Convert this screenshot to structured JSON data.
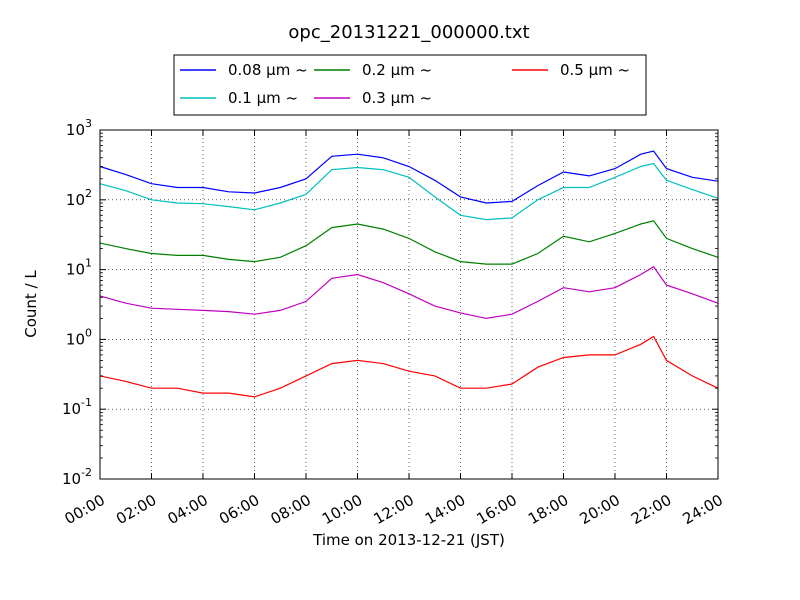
{
  "chart_data": {
    "type": "line",
    "title": "opc_20131221_000000.txt",
    "xlabel": "Time on 2013-12-21 (JST)",
    "ylabel": "Count / L",
    "xlim": [
      "00:00",
      "24:00"
    ],
    "ylim": [
      0.01,
      1000
    ],
    "yscale": "log",
    "grid": true,
    "legend_position": "top",
    "x_tick_labels": [
      "00:00",
      "02:00",
      "04:00",
      "06:00",
      "08:00",
      "10:00",
      "12:00",
      "14:00",
      "16:00",
      "18:00",
      "20:00",
      "22:00",
      "24:00"
    ],
    "y_tick_labels": [
      {
        "base": "10",
        "exp": "-2"
      },
      {
        "base": "10",
        "exp": "-1"
      },
      {
        "base": "10",
        "exp": "0"
      },
      {
        "base": "10",
        "exp": "1"
      },
      {
        "base": "10",
        "exp": "2"
      },
      {
        "base": "10",
        "exp": "3"
      }
    ],
    "x": [
      "00:00",
      "01:00",
      "02:00",
      "03:00",
      "04:00",
      "05:00",
      "06:00",
      "07:00",
      "08:00",
      "09:00",
      "10:00",
      "11:00",
      "12:00",
      "13:00",
      "14:00",
      "15:00",
      "16:00",
      "17:00",
      "18:00",
      "19:00",
      "20:00",
      "21:00",
      "21:30",
      "22:00",
      "23:00",
      "24:00"
    ],
    "series": [
      {
        "name": "0.08 μm ~",
        "color": "#0000ff",
        "values": [
          300,
          230,
          170,
          150,
          150,
          130,
          125,
          150,
          200,
          420,
          450,
          400,
          300,
          190,
          110,
          90,
          95,
          160,
          250,
          220,
          280,
          450,
          500,
          280,
          210,
          185
        ]
      },
      {
        "name": "0.1 μm ~",
        "color": "#00bfbf",
        "values": [
          170,
          135,
          100,
          90,
          88,
          80,
          72,
          90,
          120,
          270,
          290,
          270,
          210,
          110,
          60,
          52,
          55,
          100,
          150,
          150,
          210,
          300,
          330,
          190,
          140,
          105
        ]
      },
      {
        "name": "0.2 μm ~",
        "color": "#008000",
        "values": [
          24,
          20,
          17,
          16,
          16,
          14,
          13,
          15,
          22,
          40,
          45,
          38,
          28,
          18,
          13,
          12,
          12,
          17,
          30,
          25,
          33,
          45,
          50,
          28,
          20,
          15
        ]
      },
      {
        "name": "0.3 μm ~",
        "color": "#bf00bf",
        "values": [
          4.2,
          3.3,
          2.8,
          2.7,
          2.6,
          2.5,
          2.3,
          2.6,
          3.5,
          7.5,
          8.5,
          6.5,
          4.5,
          3.0,
          2.4,
          2.0,
          2.3,
          3.5,
          5.5,
          4.8,
          5.5,
          8.5,
          11,
          6.0,
          4.5,
          3.3
        ]
      },
      {
        "name": "0.5 μm ~",
        "color": "#ff0000",
        "values": [
          0.3,
          0.25,
          0.2,
          0.2,
          0.17,
          0.17,
          0.15,
          0.2,
          0.3,
          0.45,
          0.5,
          0.45,
          0.35,
          0.3,
          0.2,
          0.2,
          0.23,
          0.4,
          0.55,
          0.6,
          0.6,
          0.85,
          1.1,
          0.5,
          0.3,
          0.2
        ]
      }
    ]
  }
}
